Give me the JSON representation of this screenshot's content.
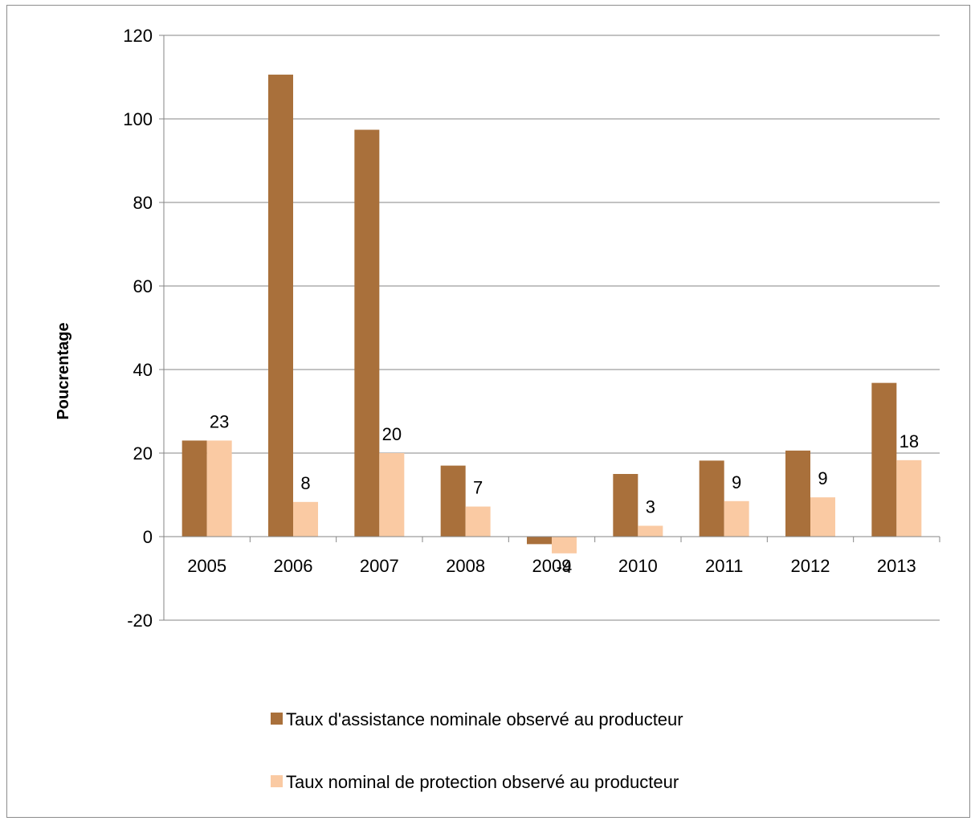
{
  "chart_data": {
    "type": "bar",
    "categories": [
      "2005",
      "2006",
      "2007",
      "2008",
      "2009",
      "2010",
      "2011",
      "2012",
      "2013"
    ],
    "series": [
      {
        "name": "Taux d'assistance nominale observé au producteur",
        "values": [
          23,
          110.6,
          97.4,
          17,
          -1.8,
          15,
          18.2,
          20.6,
          36.8
        ],
        "color": "#A9703B"
      },
      {
        "name": "Taux nominal de protection observé au producteur",
        "values": [
          23,
          8.3,
          20,
          7.2,
          -4,
          2.6,
          8.5,
          9.4,
          18.3
        ],
        "labels": [
          "23",
          "8",
          "20",
          "7",
          "-4",
          "3",
          "9",
          "9",
          "18"
        ],
        "color": "#FACAA3"
      }
    ],
    "ylabel": "Poucrentage",
    "ylim": [
      -20,
      120
    ],
    "yticks": [
      "-20",
      "0",
      "20",
      "40",
      "60",
      "80",
      "100",
      "120"
    ],
    "grid": true,
    "legend_position": "bottom"
  }
}
